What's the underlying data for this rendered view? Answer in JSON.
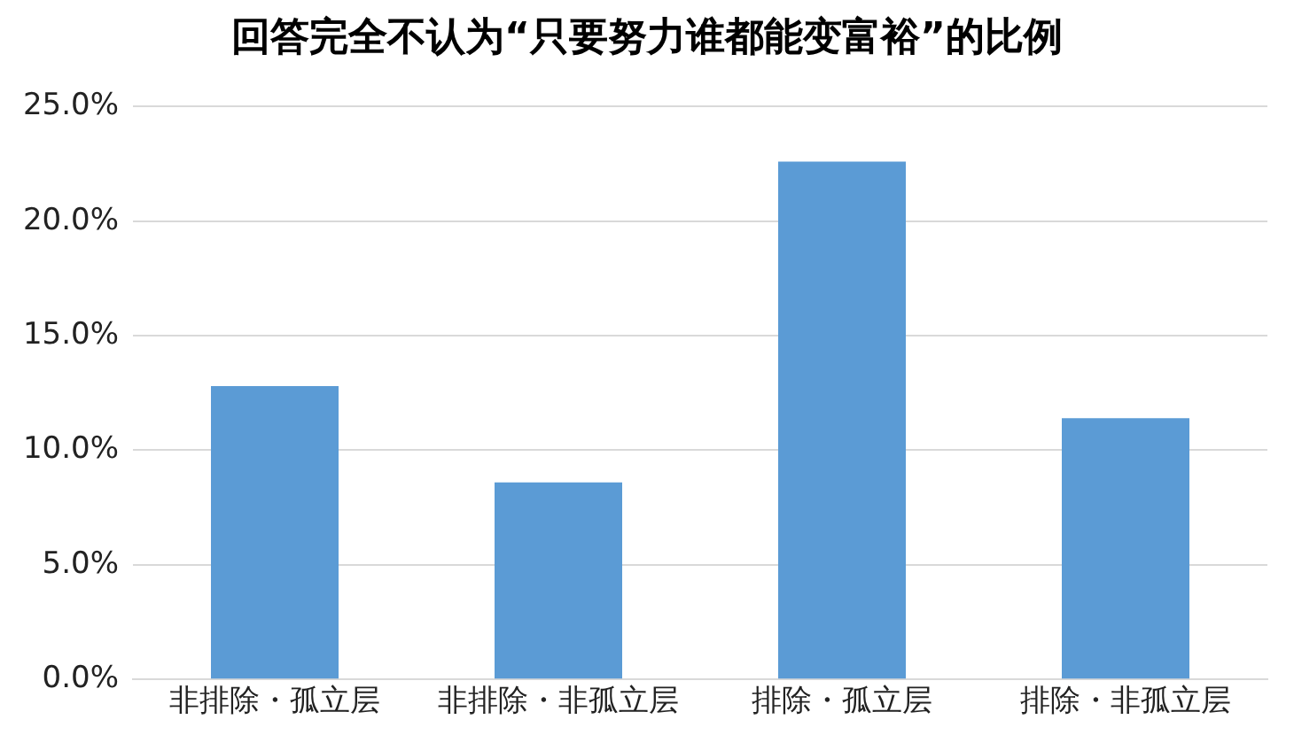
{
  "chart_data": {
    "type": "bar",
    "title": "回答完全不认为“只要努力谁都能变富裕”的比例",
    "categories": [
      "非排除・孤立层",
      "非排除・非孤立层",
      "排除・孤立层",
      "排除・非孤立层"
    ],
    "values": [
      12.8,
      8.6,
      22.6,
      11.4
    ],
    "color": "#5b9bd5",
    "ylim": [
      0,
      25
    ],
    "yticks": [
      {
        "value": 0,
        "label": "0.0%"
      },
      {
        "value": 5,
        "label": "5.0%"
      },
      {
        "value": 10,
        "label": "10.0%"
      },
      {
        "value": 15,
        "label": "15.0%"
      },
      {
        "value": 20,
        "label": "20.0%"
      },
      {
        "value": 25,
        "label": "25.0%"
      }
    ],
    "grid": "y"
  }
}
